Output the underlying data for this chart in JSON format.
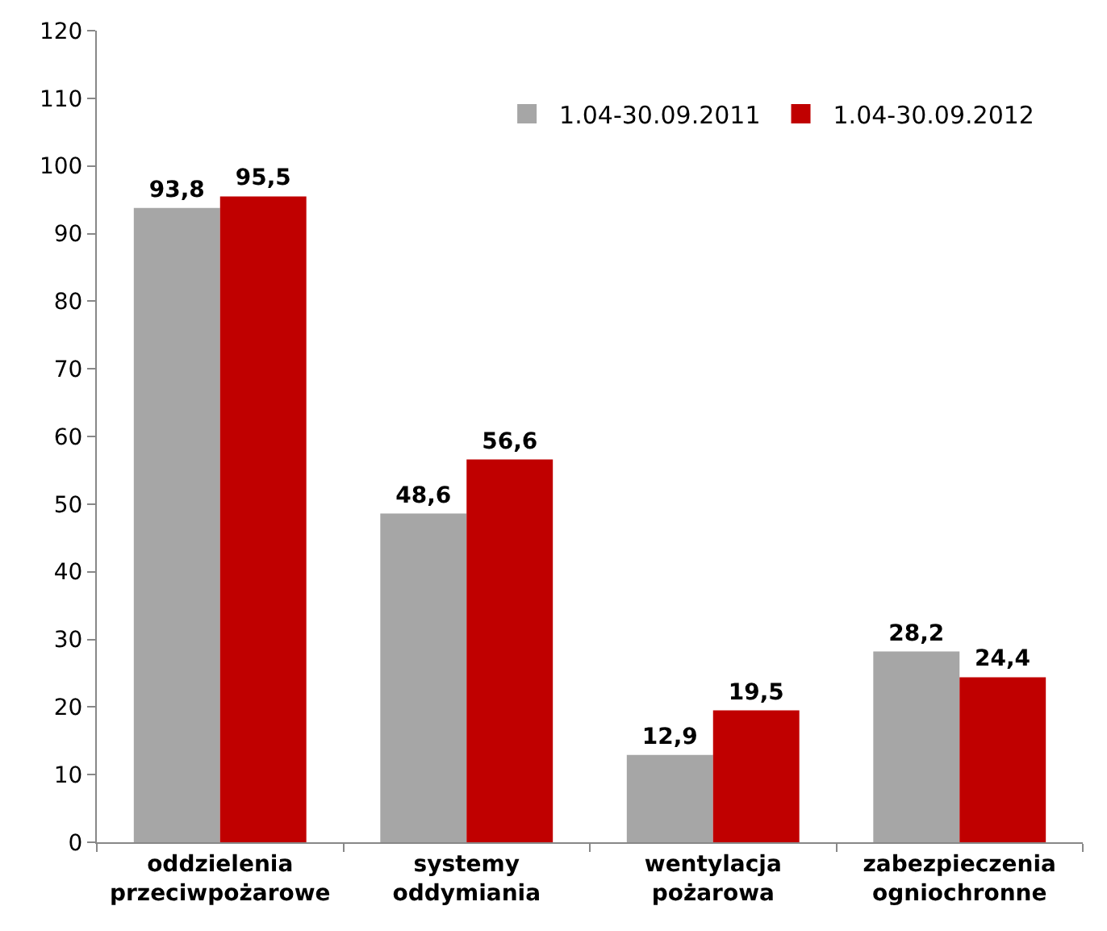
{
  "chart_data": {
    "type": "bar",
    "categories": [
      "oddzielenia\nprzeciwpożarowe",
      "systemy\noddymiania",
      "wentylacja\npożarowa",
      "zabezpieczenia\nogniochronne"
    ],
    "series": [
      {
        "name": "1.04-30.09.2011",
        "color": "#a6a6a6",
        "values": [
          93.8,
          48.6,
          12.9,
          28.2
        ],
        "value_labels": [
          "93,8",
          "48,6",
          "12,9",
          "28,2"
        ]
      },
      {
        "name": "1.04-30.09.2012",
        "color": "#c00000",
        "values": [
          95.5,
          56.6,
          19.5,
          24.4
        ],
        "value_labels": [
          "95,5",
          "56,6",
          "19,5",
          "24,4"
        ]
      }
    ],
    "ylim": [
      0,
      120
    ],
    "yticks": [
      0,
      10,
      20,
      30,
      40,
      50,
      60,
      70,
      80,
      90,
      100,
      110,
      120
    ],
    "legend": "top right"
  }
}
